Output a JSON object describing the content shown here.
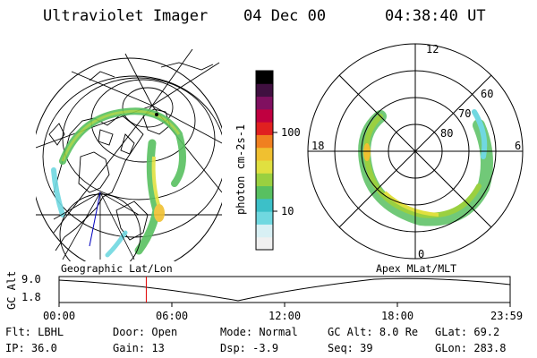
{
  "header": {
    "instrument": "Ultraviolet Imager",
    "date": "04 Dec 00",
    "time": "04:38:40 UT"
  },
  "colorbar": {
    "unit_label": "photon cm-2s-1",
    "ticks": [
      "100",
      "10"
    ],
    "scale": "log",
    "colors": [
      "#f0f0f0",
      "#d8f0f4",
      "#70d8e0",
      "#3cc0c8",
      "#58c060",
      "#9ad040",
      "#e0e040",
      "#f0c030",
      "#f08020",
      "#e02020",
      "#c00040",
      "#801060",
      "#401040",
      "#000000"
    ]
  },
  "polar_plot": {
    "mlt_labels": {
      "top": "12",
      "left": "18",
      "right": "6",
      "bottom": "0"
    },
    "lat_labels": [
      "60",
      "70",
      "80"
    ]
  },
  "map_labels": {
    "left": "Geographic Lat/Lon",
    "right": "Apex MLat/MLT"
  },
  "altitude_plot": {
    "axis_label": "GC Alt",
    "y_ticks": [
      "9.0",
      "1.8"
    ],
    "x_ticks": [
      "00:00",
      "06:00",
      "12:00",
      "18:00",
      "23:59"
    ],
    "current_time_marker_hours": 4.64
  },
  "info": {
    "row1": [
      {
        "label": "Flt:",
        "value": "LBHL"
      },
      {
        "label": "Door:",
        "value": "Open"
      },
      {
        "label": "Mode:",
        "value": "Normal"
      },
      {
        "label": "GC Alt:",
        "value": "8.0 Re"
      },
      {
        "label": "GLat:",
        "value": "69.2"
      }
    ],
    "row2": [
      {
        "label": "IP:",
        "value": "36.0"
      },
      {
        "label": "Gain:",
        "value": "13"
      },
      {
        "label": "Dsp:",
        "value": "-3.9"
      },
      {
        "label": "Seq:",
        "value": "39"
      },
      {
        "label": "GLon:",
        "value": "283.8"
      }
    ]
  }
}
